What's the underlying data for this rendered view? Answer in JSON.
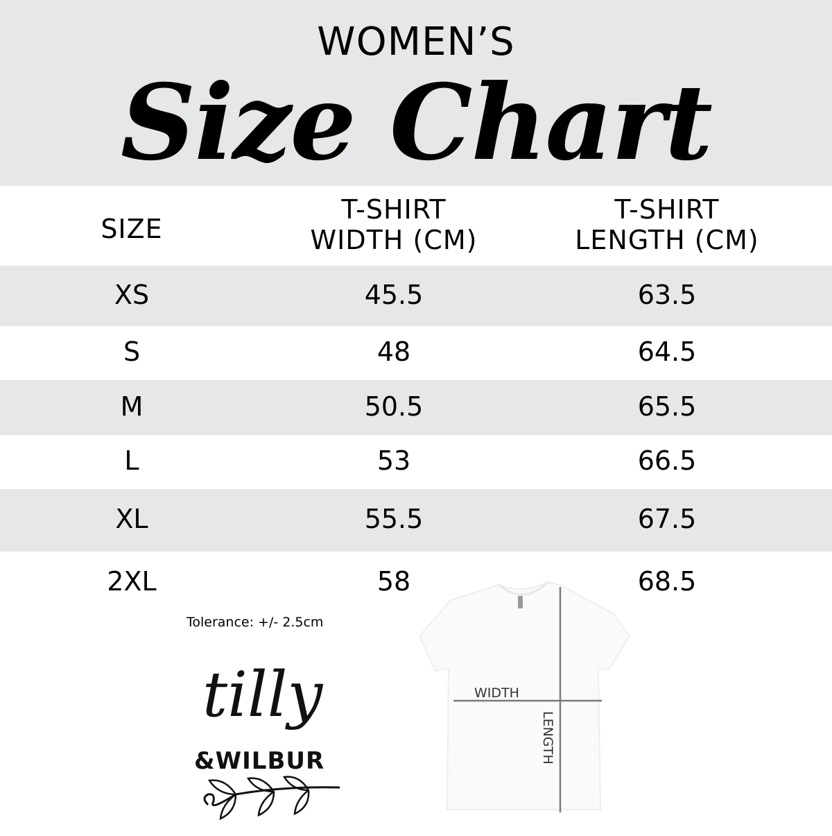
{
  "header": {
    "subtitle": "WOMEN’S",
    "title": "Size Chart"
  },
  "table": {
    "columns": [
      "SIZE",
      "T-SHIRT\nWIDTH (CM)",
      "T-SHIRT\nLENGTH (CM)"
    ],
    "column_lines": [
      [
        "SIZE"
      ],
      [
        "T-SHIRT",
        "WIDTH (CM)"
      ],
      [
        "T-SHIRT",
        "LENGTH (CM)"
      ]
    ],
    "rows": [
      {
        "size": "XS",
        "width": "45.5",
        "length": "63.5"
      },
      {
        "size": "S",
        "width": "48",
        "length": "64.5"
      },
      {
        "size": "M",
        "width": "50.5",
        "length": "65.5"
      },
      {
        "size": "L",
        "width": "53",
        "length": "66.5"
      },
      {
        "size": "XL",
        "width": "55.5",
        "length": "67.5"
      },
      {
        "size": "2XL",
        "width": "58",
        "length": "68.5"
      }
    ]
  },
  "tolerance": "Tolerance: +/- 2.5cm",
  "logo": {
    "line1": "tilly",
    "line2": "&WILBUR"
  },
  "diagram": {
    "width_label": "WIDTH",
    "length_label": "LENGTH"
  },
  "colors": {
    "band": "#e6e7e9",
    "text": "#000000",
    "measure_line": "#7a7a7a"
  }
}
